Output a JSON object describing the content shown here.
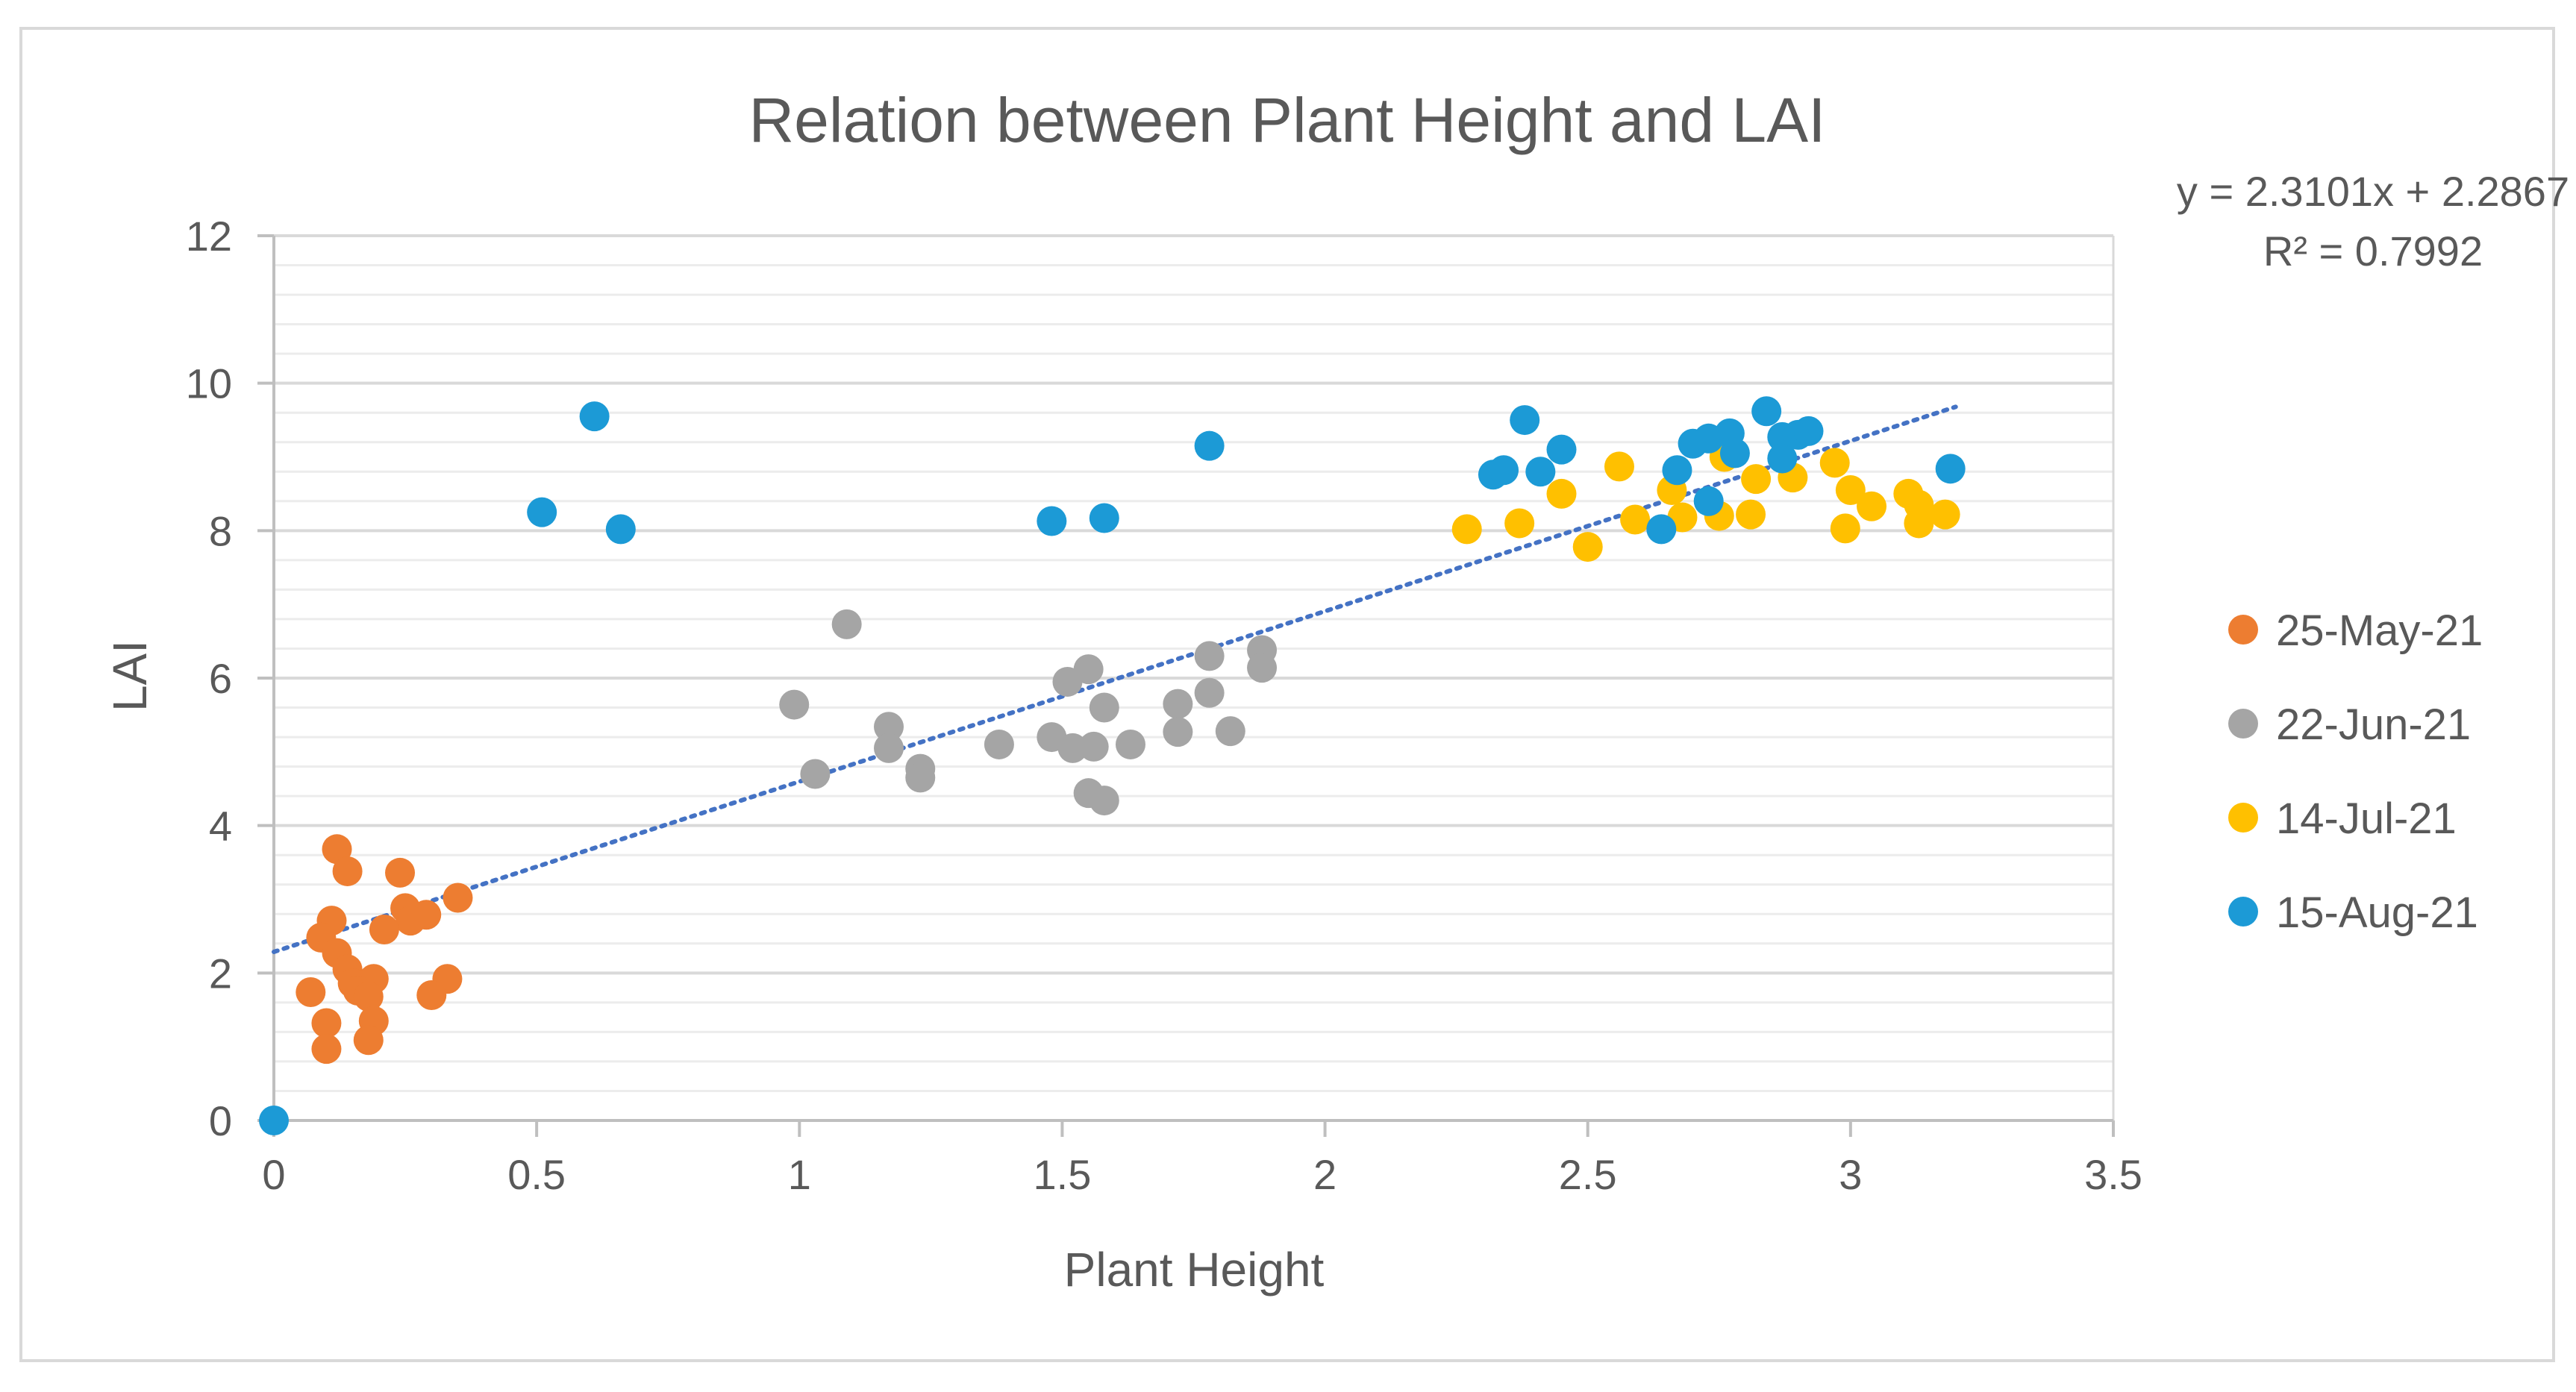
{
  "chart_data": {
    "type": "scatter",
    "title": "Relation between Plant Height and LAI",
    "xlabel": "Plant Height",
    "ylabel": "LAI",
    "xlim": [
      0,
      3.5
    ],
    "ylim": [
      0,
      12
    ],
    "xticks": [
      0,
      0.5,
      1,
      1.5,
      2,
      2.5,
      3,
      3.5
    ],
    "xtick_labels": [
      "0",
      "0.5",
      "1",
      "1.5",
      "2",
      "2.5",
      "3",
      "3.5"
    ],
    "yticks": [
      0,
      2,
      4,
      6,
      8,
      10,
      12
    ],
    "ytick_labels": [
      "0",
      "2",
      "4",
      "6",
      "8",
      "10",
      "12"
    ],
    "grid": true,
    "legend_position": "right",
    "series": [
      {
        "name": "25-May-21",
        "color": "#ED7D31",
        "points": [
          [
            0.12,
            3.68
          ],
          [
            0.14,
            3.38
          ],
          [
            0.24,
            3.36
          ],
          [
            0.35,
            3.02
          ],
          [
            0.25,
            2.88
          ],
          [
            0.29,
            2.79
          ],
          [
            0.11,
            2.71
          ],
          [
            0.09,
            2.48
          ],
          [
            0.26,
            2.71
          ],
          [
            0.21,
            2.59
          ],
          [
            0.12,
            2.27
          ],
          [
            0.14,
            2.05
          ],
          [
            0.19,
            1.92
          ],
          [
            0.33,
            1.92
          ],
          [
            0.15,
            1.86
          ],
          [
            0.16,
            1.76
          ],
          [
            0.07,
            1.74
          ],
          [
            0.3,
            1.7
          ],
          [
            0.18,
            1.68
          ],
          [
            0.19,
            1.35
          ],
          [
            0.1,
            1.32
          ],
          [
            0.18,
            1.09
          ],
          [
            0.1,
            0.97
          ]
        ]
      },
      {
        "name": "22-Jun-21",
        "color": "#A5A5A5",
        "points": [
          [
            1.09,
            6.73
          ],
          [
            0.99,
            5.64
          ],
          [
            1.17,
            5.34
          ],
          [
            1.17,
            5.05
          ],
          [
            1.03,
            4.7
          ],
          [
            1.23,
            4.77
          ],
          [
            1.23,
            4.65
          ],
          [
            1.38,
            5.1
          ],
          [
            1.48,
            5.2
          ],
          [
            1.51,
            5.95
          ],
          [
            1.55,
            6.12
          ],
          [
            1.58,
            5.6
          ],
          [
            1.52,
            5.05
          ],
          [
            1.56,
            5.07
          ],
          [
            1.63,
            5.1
          ],
          [
            1.55,
            4.44
          ],
          [
            1.58,
            4.34
          ],
          [
            1.72,
            5.65
          ],
          [
            1.72,
            5.27
          ],
          [
            1.78,
            5.8
          ],
          [
            1.78,
            6.3
          ],
          [
            1.82,
            5.28
          ],
          [
            1.88,
            6.38
          ],
          [
            1.88,
            6.14
          ]
        ]
      },
      {
        "name": "14-Jul-21",
        "color": "#FFC000",
        "points": [
          [
            2.27,
            8.02
          ],
          [
            2.37,
            8.1
          ],
          [
            2.45,
            8.5
          ],
          [
            2.5,
            7.78
          ],
          [
            2.56,
            8.87
          ],
          [
            2.59,
            8.15
          ],
          [
            2.66,
            8.55
          ],
          [
            2.68,
            8.18
          ],
          [
            2.75,
            8.2
          ],
          [
            2.76,
            9.0
          ],
          [
            2.81,
            8.22
          ],
          [
            2.82,
            8.7
          ],
          [
            2.89,
            8.72
          ],
          [
            2.97,
            8.92
          ],
          [
            3.0,
            8.55
          ],
          [
            2.99,
            8.03
          ],
          [
            3.04,
            8.33
          ],
          [
            3.11,
            8.5
          ],
          [
            3.13,
            8.35
          ],
          [
            3.13,
            8.1
          ],
          [
            3.18,
            8.22
          ]
        ]
      },
      {
        "name": "15-Aug-21",
        "color": "#1C9AD6",
        "points": [
          [
            0.0,
            0.0
          ],
          [
            0.51,
            8.25
          ],
          [
            0.61,
            9.55
          ],
          [
            0.66,
            8.02
          ],
          [
            1.48,
            8.13
          ],
          [
            1.58,
            8.17
          ],
          [
            1.78,
            9.15
          ],
          [
            2.32,
            8.76
          ],
          [
            2.34,
            8.82
          ],
          [
            2.38,
            9.5
          ],
          [
            2.41,
            8.8
          ],
          [
            2.45,
            9.1
          ],
          [
            2.64,
            8.02
          ],
          [
            2.67,
            8.82
          ],
          [
            2.7,
            9.18
          ],
          [
            2.73,
            9.25
          ],
          [
            2.73,
            8.4
          ],
          [
            2.77,
            9.32
          ],
          [
            2.78,
            9.05
          ],
          [
            2.84,
            9.62
          ],
          [
            2.87,
            9.27
          ],
          [
            2.87,
            8.98
          ],
          [
            2.9,
            9.3
          ],
          [
            2.92,
            9.35
          ],
          [
            3.19,
            8.84
          ]
        ]
      }
    ],
    "trendline": {
      "type": "linear",
      "slope": 2.3101,
      "intercept": 2.2867,
      "x_range": [
        0,
        3.2
      ],
      "color": "#4472C4",
      "style": "dotted",
      "equation": "y = 2.3101x + 2.2867",
      "r_squared": "R² = 0.7992"
    }
  }
}
